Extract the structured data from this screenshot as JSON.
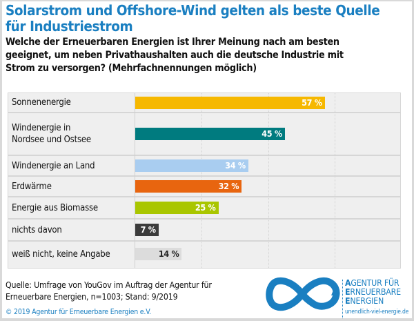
{
  "header": {
    "title_line1": "Solarstrom und Offshore-Wind gelten als beste Quelle",
    "title_line2": "für Industriestrom",
    "subtitle_line1": "Welche der Erneuerbaren Energien ist Ihrer Meinung nach am besten",
    "subtitle_line2": "geeignet, um neben Privathaushalten auch die deutsche Industrie mit",
    "subtitle_line3": "Strom zu versorgen? (Mehrfachnennungen möglich)"
  },
  "chart_data": {
    "type": "bar",
    "orientation": "horizontal",
    "title": "Solarstrom und Offshore-Wind gelten als beste Quelle für Industriestrom",
    "xlabel": "",
    "ylabel": "",
    "unit": "%",
    "xlim": [
      0,
      80
    ],
    "grid": true,
    "gridlines": [
      20,
      40,
      60
    ],
    "categories": [
      "Sonnenenergie",
      "Windenergie in Nordsee und Ostsee",
      "Windenergie an Land",
      "Erdwärme",
      "Energie aus Biomasse",
      "nichts davon",
      "weiß nicht, keine Angabe"
    ],
    "category_lines": [
      [
        "Sonnenenergie"
      ],
      [
        "Windenergie in",
        "Nordsee und Ostsee"
      ],
      [
        "Windenergie an Land"
      ],
      [
        "Erdwärme"
      ],
      [
        "Energie aus Biomasse"
      ],
      [
        "nichts davon"
      ],
      [
        "weiß nicht, keine Angabe"
      ]
    ],
    "values": [
      57,
      45,
      34,
      32,
      25,
      7,
      14
    ],
    "value_labels": [
      "57 %",
      "45 %",
      "34 %",
      "32 %",
      "25 %",
      "7 %",
      "14 %"
    ],
    "colors": [
      "#f6b800",
      "#007b7f",
      "#a9cdf0",
      "#e8650f",
      "#a9c600",
      "#3b3b3b",
      "#dcdcdc"
    ],
    "label_colors": [
      "#ffffff",
      "#ffffff",
      "#ffffff",
      "#ffffff",
      "#ffffff",
      "#ffffff",
      "#222222"
    ]
  },
  "footer": {
    "source_line1": "Quelle: Umfrage von YouGov im Auftrag der Agentur für",
    "source_line2": "Erneuerbare Energien, n=1003; Stand: 9/2019",
    "copyright": "© 2019 Agentur für Erneuerbare Energien e.V."
  },
  "logo": {
    "line1_initial": "A",
    "line1_rest": "GENTUR FÜR",
    "line2_initial": "E",
    "line2_rest": "RNEUERBARE",
    "line3_initial": "E",
    "line3_rest": "NERGIEN",
    "url": "unendlich-viel-energie.de",
    "color": "#1a7fc1"
  }
}
